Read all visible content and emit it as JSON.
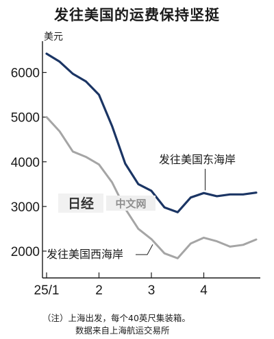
{
  "chart_data": {
    "type": "line",
    "title": "发往美国的运费保持坚挺",
    "ylabel": "美元",
    "ylim": [
      1400,
      6700
    ],
    "yticks": [
      2000,
      3000,
      4000,
      5000,
      6000
    ],
    "xticks": [
      {
        "pos": 0,
        "label": "25/1"
      },
      {
        "pos": 4,
        "label": "2"
      },
      {
        "pos": 8,
        "label": "3"
      },
      {
        "pos": 12,
        "label": "4"
      }
    ],
    "x": [
      0,
      1,
      2,
      3,
      4,
      5,
      6,
      7,
      8,
      9,
      10,
      11,
      12,
      13,
      14,
      15,
      16
    ],
    "series": [
      {
        "name": "发往美国东海岸",
        "color": "#1b3564",
        "values": [
          6420,
          6240,
          5970,
          5800,
          5500,
          4800,
          3960,
          3500,
          3350,
          2980,
          2870,
          3200,
          3300,
          3230,
          3270,
          3270,
          3310
        ]
      },
      {
        "name": "发往美国西海岸",
        "color": "#a5a5a5",
        "values": [
          5000,
          4680,
          4230,
          4110,
          3940,
          3540,
          2950,
          2500,
          2270,
          1950,
          1840,
          2170,
          2300,
          2220,
          2100,
          2140,
          2260
        ]
      }
    ],
    "grid": false
  },
  "watermark": {
    "logo": "日经",
    "text": "中文网"
  },
  "note": {
    "line1": "（注）上海出发，每个40英尺集装箱。",
    "line2": "数据来自上海航运交易所"
  }
}
